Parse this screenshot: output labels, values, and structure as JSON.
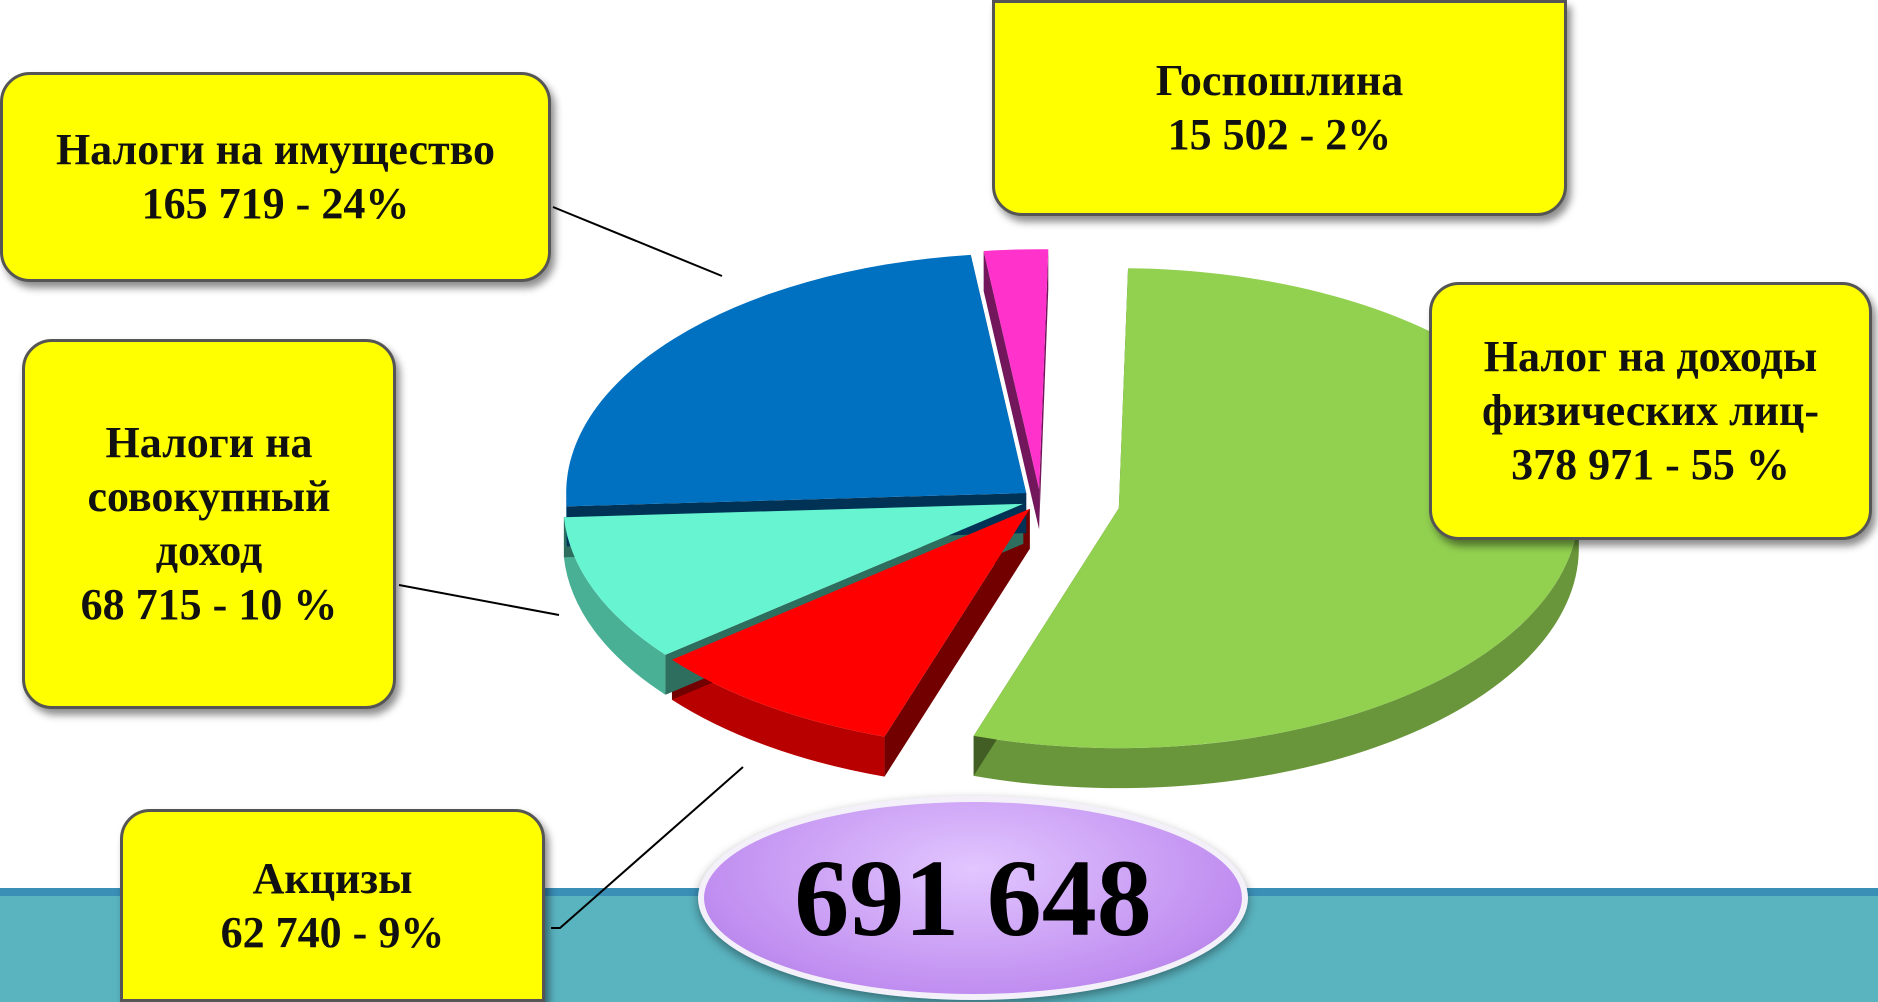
{
  "chart_data": {
    "type": "pie",
    "categories": [
      "Налог на доходы физических лиц-",
      "Акцизы",
      "Налоги на совокупный доход",
      "Налоги на имущество",
      "Госпошлина"
    ],
    "values": [
      378971,
      62740,
      68715,
      165719,
      15502
    ],
    "value_labels": [
      "378 971 -  55 %",
      "62 740 - 9%",
      "68 715 - 10 %",
      "165 719  - 24%",
      "15 502  -  2%"
    ],
    "colors": [
      "#92d050",
      "#ff0000",
      "#66f5d0",
      "#0070c0",
      "#ff33cc"
    ],
    "total": 691648,
    "total_label": "691 648"
  }
}
